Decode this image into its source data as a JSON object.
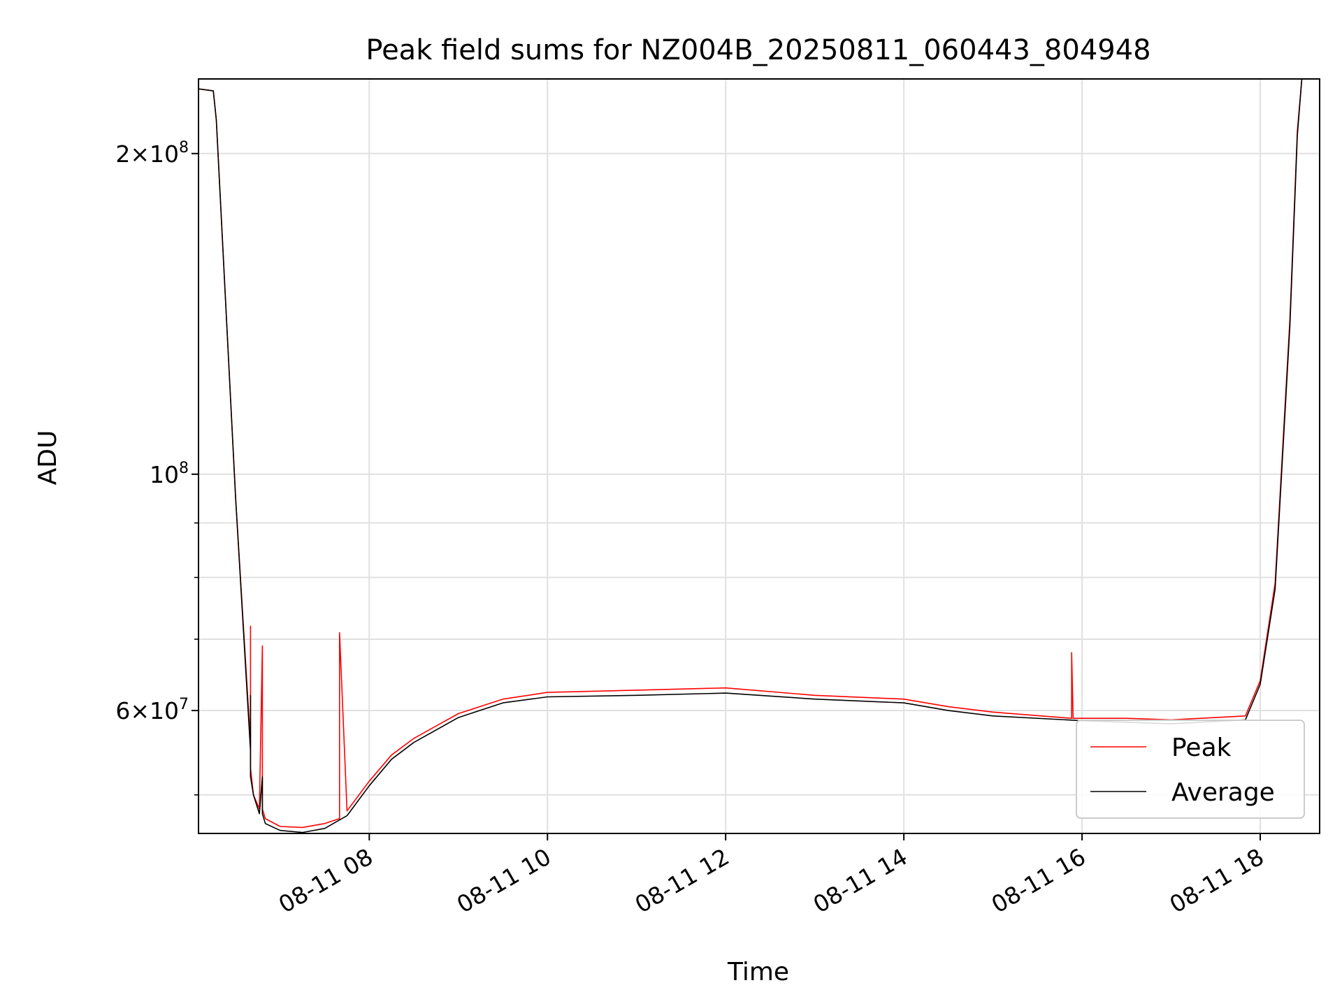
{
  "chart_data": {
    "type": "line",
    "title": "Peak field sums for NZ004B_20250811_060443_804948",
    "xlabel": "Time",
    "ylabel": "ADU",
    "x_axis": {
      "kind": "time",
      "range": [
        "2025-08-11 06:05",
        "2025-08-11 18:40"
      ],
      "tick_labels": [
        "08-11 08",
        "08-11 10",
        "08-11 12",
        "08-11 14",
        "08-11 16",
        "08-11 18"
      ],
      "tick_values": [
        "2025-08-11 08:00",
        "2025-08-11 10:00",
        "2025-08-11 12:00",
        "2025-08-11 14:00",
        "2025-08-11 16:00",
        "2025-08-11 18:00"
      ]
    },
    "y_axis": {
      "scale": "log",
      "range": [
        46000000,
        235000000
      ],
      "major_ticks": [
        {
          "value": 60000000,
          "mantissa": "6",
          "exp": "7"
        },
        {
          "value": 100000000,
          "mantissa": "",
          "exp": "8"
        },
        {
          "value": 200000000,
          "mantissa": "2",
          "exp": "8"
        }
      ],
      "minor_ticks": [
        50000000,
        70000000,
        80000000,
        90000000
      ]
    },
    "grid": true,
    "legend_position": "bottom-right",
    "colors": {
      "peak": "#ff0000",
      "average": "#000000",
      "grid": "#e0e0e0"
    },
    "series": [
      {
        "name": "Peak",
        "color": "#ff0000",
        "x": [
          "2025-08-11 06:05",
          "2025-08-11 06:15",
          "2025-08-11 06:17",
          "2025-08-11 06:30",
          "2025-08-11 06:40",
          "2025-08-11 06:40",
          "2025-08-11 06:40",
          "2025-08-11 06:42",
          "2025-08-11 06:46",
          "2025-08-11 06:48",
          "2025-08-11 06:48",
          "2025-08-11 06:50",
          "2025-08-11 07:00",
          "2025-08-11 07:15",
          "2025-08-11 07:30",
          "2025-08-11 07:40",
          "2025-08-11 07:40",
          "2025-08-11 07:45",
          "2025-08-11 08:00",
          "2025-08-11 08:15",
          "2025-08-11 08:30",
          "2025-08-11 09:00",
          "2025-08-11 09:30",
          "2025-08-11 10:00",
          "2025-08-11 11:00",
          "2025-08-11 12:00",
          "2025-08-11 13:00",
          "2025-08-11 14:00",
          "2025-08-11 14:30",
          "2025-08-11 15:00",
          "2025-08-11 15:53",
          "2025-08-11 15:53",
          "2025-08-11 15:54",
          "2025-08-11 16:30",
          "2025-08-11 17:00",
          "2025-08-11 17:50",
          "2025-08-11 18:00",
          "2025-08-11 18:10",
          "2025-08-11 18:20",
          "2025-08-11 18:25",
          "2025-08-11 18:28"
        ],
        "y": [
          230000000,
          229000000,
          215000000,
          95000000,
          56000000,
          72000000,
          53000000,
          50000000,
          48500000,
          69000000,
          48500000,
          47500000,
          46700000,
          46600000,
          47000000,
          47500000,
          71000000,
          48300000,
          51500000,
          54500000,
          56500000,
          59600000,
          61500000,
          62400000,
          62700000,
          63000000,
          62000000,
          61500000,
          60500000,
          59800000,
          59000000,
          68000000,
          59000000,
          59000000,
          58800000,
          59300000,
          64000000,
          79000000,
          140000000,
          210000000,
          235000000
        ]
      },
      {
        "name": "Average",
        "color": "#000000",
        "x": [
          "2025-08-11 06:05",
          "2025-08-11 06:15",
          "2025-08-11 06:17",
          "2025-08-11 06:30",
          "2025-08-11 06:40",
          "2025-08-11 06:40",
          "2025-08-11 06:40",
          "2025-08-11 06:42",
          "2025-08-11 06:46",
          "2025-08-11 06:48",
          "2025-08-11 06:48",
          "2025-08-11 06:50",
          "2025-08-11 07:00",
          "2025-08-11 07:15",
          "2025-08-11 07:30",
          "2025-08-11 07:45",
          "2025-08-11 08:00",
          "2025-08-11 08:15",
          "2025-08-11 08:30",
          "2025-08-11 09:00",
          "2025-08-11 09:30",
          "2025-08-11 10:00",
          "2025-08-11 11:00",
          "2025-08-11 12:00",
          "2025-08-11 13:00",
          "2025-08-11 14:00",
          "2025-08-11 14:30",
          "2025-08-11 15:00",
          "2025-08-11 16:00",
          "2025-08-11 16:30",
          "2025-08-11 17:00",
          "2025-08-11 17:50",
          "2025-08-11 18:00",
          "2025-08-11 18:10",
          "2025-08-11 18:20",
          "2025-08-11 18:25",
          "2025-08-11 18:28"
        ],
        "y": [
          230000000,
          229000000,
          215000000,
          95000000,
          55000000,
          62000000,
          52000000,
          50000000,
          48000000,
          52000000,
          48000000,
          47000000,
          46300000,
          46100000,
          46500000,
          47800000,
          51000000,
          54000000,
          56000000,
          59100000,
          61000000,
          61800000,
          62000000,
          62300000,
          61500000,
          61000000,
          60000000,
          59300000,
          58700000,
          58500000,
          58300000,
          58800000,
          63500000,
          78000000,
          138000000,
          208000000,
          235000000
        ]
      }
    ]
  }
}
